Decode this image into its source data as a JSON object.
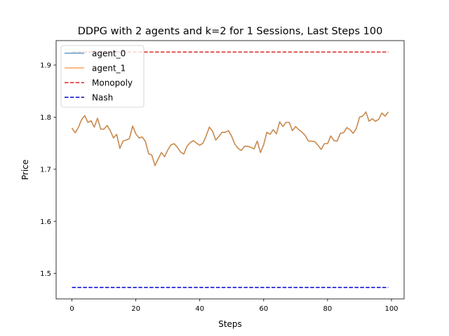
{
  "chart_data": {
    "type": "line",
    "title": "DDPG with 2 agents and k=2 for 1 Sessions, Last Steps 100",
    "xlabel": "Steps",
    "ylabel": "Price",
    "xlim": [
      -4.95,
      103.95
    ],
    "ylim": [
      1.451,
      1.947
    ],
    "xticks": [
      0,
      20,
      40,
      60,
      80,
      100
    ],
    "yticks": [
      1.5,
      1.6,
      1.7,
      1.8,
      1.9
    ],
    "xtick_labels": [
      "0",
      "20",
      "40",
      "60",
      "80",
      "100"
    ],
    "ytick_labels": [
      "1.5",
      "1.6",
      "1.7",
      "1.8",
      "1.9"
    ],
    "grid": false,
    "legend_position": "top-left",
    "x": [
      0,
      1,
      2,
      3,
      4,
      5,
      6,
      7,
      8,
      9,
      10,
      11,
      12,
      13,
      14,
      15,
      16,
      17,
      18,
      19,
      20,
      21,
      22,
      23,
      24,
      25,
      26,
      27,
      28,
      29,
      30,
      31,
      32,
      33,
      34,
      35,
      36,
      37,
      38,
      39,
      40,
      41,
      42,
      43,
      44,
      45,
      46,
      47,
      48,
      49,
      50,
      51,
      52,
      53,
      54,
      55,
      56,
      57,
      58,
      59,
      60,
      61,
      62,
      63,
      64,
      65,
      66,
      67,
      68,
      69,
      70,
      71,
      72,
      73,
      74,
      75,
      76,
      77,
      78,
      79,
      80,
      81,
      82,
      83,
      84,
      85,
      86,
      87,
      88,
      89,
      90,
      91,
      92,
      93,
      94,
      95,
      96,
      97,
      98,
      99
    ],
    "series": [
      {
        "name": "agent_0",
        "color": "#1f77b4",
        "style": "solid",
        "values": [
          1.779,
          1.77,
          1.78,
          1.795,
          1.803,
          1.79,
          1.793,
          1.781,
          1.798,
          1.777,
          1.777,
          1.784,
          1.774,
          1.76,
          1.767,
          1.74,
          1.754,
          1.756,
          1.759,
          1.783,
          1.768,
          1.76,
          1.762,
          1.753,
          1.73,
          1.727,
          1.707,
          1.72,
          1.732,
          1.724,
          1.737,
          1.747,
          1.749,
          1.742,
          1.733,
          1.729,
          1.744,
          1.751,
          1.755,
          1.75,
          1.746,
          1.75,
          1.764,
          1.781,
          1.773,
          1.756,
          1.763,
          1.771,
          1.771,
          1.774,
          1.763,
          1.748,
          1.74,
          1.736,
          1.744,
          1.744,
          1.742,
          1.739,
          1.754,
          1.732,
          1.747,
          1.771,
          1.767,
          1.776,
          1.768,
          1.791,
          1.782,
          1.79,
          1.79,
          1.774,
          1.782,
          1.776,
          1.771,
          1.765,
          1.754,
          1.754,
          1.753,
          1.746,
          1.738,
          1.749,
          1.749,
          1.764,
          1.755,
          1.754,
          1.769,
          1.77,
          1.78,
          1.776,
          1.769,
          1.778,
          1.8,
          1.802,
          1.81,
          1.792,
          1.797,
          1.792,
          1.796,
          1.808,
          1.802,
          1.81
        ]
      },
      {
        "name": "agent_1",
        "color": "#ff7f0e",
        "style": "solid",
        "values": [
          1.779,
          1.77,
          1.78,
          1.795,
          1.803,
          1.79,
          1.793,
          1.781,
          1.798,
          1.777,
          1.777,
          1.784,
          1.774,
          1.76,
          1.767,
          1.74,
          1.754,
          1.756,
          1.759,
          1.783,
          1.768,
          1.76,
          1.762,
          1.753,
          1.73,
          1.727,
          1.707,
          1.72,
          1.732,
          1.724,
          1.737,
          1.747,
          1.749,
          1.742,
          1.733,
          1.729,
          1.744,
          1.751,
          1.755,
          1.75,
          1.746,
          1.75,
          1.764,
          1.781,
          1.773,
          1.756,
          1.763,
          1.771,
          1.771,
          1.774,
          1.763,
          1.748,
          1.74,
          1.736,
          1.744,
          1.744,
          1.742,
          1.739,
          1.754,
          1.732,
          1.747,
          1.771,
          1.767,
          1.776,
          1.768,
          1.791,
          1.782,
          1.79,
          1.79,
          1.774,
          1.782,
          1.776,
          1.771,
          1.765,
          1.754,
          1.754,
          1.753,
          1.746,
          1.738,
          1.749,
          1.749,
          1.764,
          1.755,
          1.754,
          1.769,
          1.77,
          1.78,
          1.776,
          1.769,
          1.778,
          1.8,
          1.802,
          1.81,
          1.792,
          1.797,
          1.792,
          1.796,
          1.808,
          1.802,
          1.81
        ]
      },
      {
        "name": "Monopoly",
        "color": "#d62728",
        "style": "dashed",
        "constant": 1.925
      },
      {
        "name": "Nash",
        "color": "#0000cc",
        "style": "dashed",
        "constant": 1.473
      }
    ]
  }
}
